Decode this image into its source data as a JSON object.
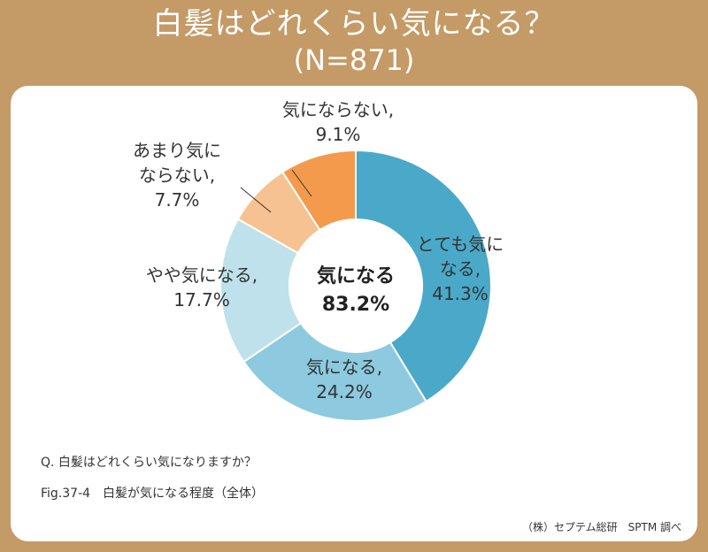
{
  "header": {
    "title_line1": "白髪はどれくらい気になる？",
    "title_line2": "(N=871)"
  },
  "colors": {
    "frame": "#c49a66",
    "slice_1": "#4aa9c8",
    "slice_2": "#8dcadf",
    "slice_3": "#bfe1ec",
    "slice_4": "#f6c291",
    "slice_5": "#f39a4d"
  },
  "chart_data": {
    "type": "pie",
    "donut": true,
    "title": "白髪はどれくらい気になる？",
    "n": "N=871",
    "center_label": "気になる",
    "center_value": "83.2%",
    "slices": [
      {
        "label": "とても気になる",
        "value": 41.3,
        "value_text": "41.3%"
      },
      {
        "label": "気になる",
        "value": 24.2,
        "value_text": "24.2%"
      },
      {
        "label": "やや気になる",
        "value": 17.7,
        "value_text": "17.7%"
      },
      {
        "label": "あまり気にならない",
        "value": 7.7,
        "value_text": "7.7%"
      },
      {
        "label": "気にならない",
        "value": 9.1,
        "value_text": "9.1%"
      }
    ],
    "slice_label_lines": [
      [
        "とても気に",
        "なる,",
        "41.3%"
      ],
      [
        "気になる,",
        "24.2%"
      ],
      [
        "やや気になる,",
        "17.7%"
      ],
      [
        "あまり気に",
        "ならない,",
        "7.7%"
      ],
      [
        "気にならない,",
        "9.1%"
      ]
    ]
  },
  "footer": {
    "question": "Q. 白髪はどれくらい気になりますか？",
    "figure_caption": "Fig.37-4　白髪が気になる程度（全体）",
    "source": "（株）セプテム総研　SPTM 調べ"
  }
}
